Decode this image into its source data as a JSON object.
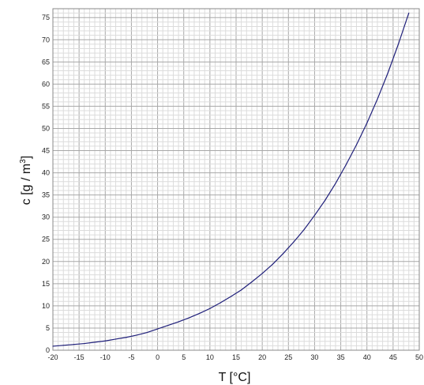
{
  "chart_data": {
    "type": "line",
    "title": "",
    "xlabel": "T [°C]",
    "ylabel_main": "c [g / m",
    "ylabel_sup": "3",
    "ylabel_tail": "]",
    "xlim": [
      -20,
      50
    ],
    "ylim": [
      0,
      77
    ],
    "xticks": [
      -20,
      -15,
      -10,
      -5,
      0,
      5,
      10,
      15,
      20,
      25,
      30,
      35,
      40,
      45,
      50
    ],
    "yticks": [
      0,
      5,
      10,
      15,
      20,
      25,
      30,
      35,
      40,
      45,
      50,
      55,
      60,
      65,
      70,
      75
    ],
    "x_minor_step": 1,
    "y_minor_step": 1,
    "grid": true,
    "line_color": "#1f1f7a",
    "grid_major_color": "#a8a8a8",
    "grid_minor_color": "#dcdcdc",
    "series": [
      {
        "x": [
          -20,
          -18,
          -16,
          -14,
          -12,
          -10,
          -8,
          -6,
          -4,
          -2,
          0,
          2,
          4,
          6,
          8,
          10,
          12,
          14,
          16,
          18,
          20,
          22,
          24,
          26,
          28,
          30,
          32,
          34,
          36,
          38,
          40,
          42,
          44,
          46,
          48
        ],
        "values": [
          0.9,
          1.1,
          1.3,
          1.5,
          1.8,
          2.1,
          2.5,
          2.9,
          3.4,
          4.0,
          4.8,
          5.6,
          6.4,
          7.3,
          8.3,
          9.4,
          10.7,
          12.1,
          13.6,
          15.4,
          17.3,
          19.4,
          21.8,
          24.4,
          27.2,
          30.4,
          33.8,
          37.6,
          41.8,
          46.3,
          51.2,
          56.6,
          62.5,
          69.0,
          76.0
        ]
      }
    ]
  }
}
